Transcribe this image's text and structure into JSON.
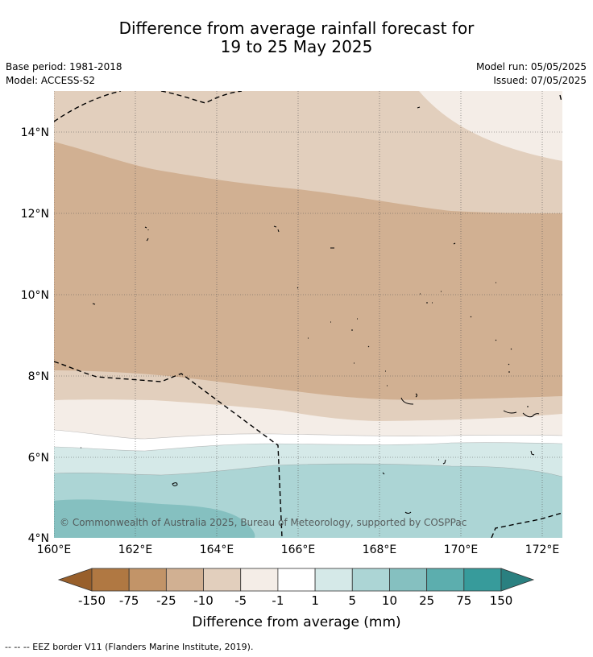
{
  "title_line1": "Difference from average rainfall forecast for",
  "title_line2": "19 to 25 May 2025",
  "base_period": "Base period: 1981-2018",
  "model": "Model: ACCESS-S2",
  "model_run": "Model run: 05/05/2025",
  "issued": "Issued: 07/05/2025",
  "copyright": "© Commonwealth of Australia 2025, Bureau of Meteorology, supported by COSPPac",
  "x_ticks": [
    "160°E",
    "162°E",
    "164°E",
    "166°E",
    "168°E",
    "170°E",
    "172°E"
  ],
  "y_ticks": [
    "14°N",
    "12°N",
    "10°N",
    "8°N",
    "6°N",
    "4°N"
  ],
  "colorbar": {
    "labels": [
      "-150",
      "-75",
      "-25",
      "-10",
      "-5",
      "-1",
      "1",
      "5",
      "10",
      "25",
      "75",
      "150"
    ],
    "colors": [
      "#985f2b",
      "#b07842",
      "#c29468",
      "#d1b092",
      "#e2cfbd",
      "#f4ede7",
      "#ffffff",
      "#d5e9e8",
      "#acd5d5",
      "#85c0c0",
      "#5caeae",
      "#379b9b",
      "#2a8080"
    ],
    "title": "Difference from average (mm)"
  },
  "footnote": "--  --  -- EEZ border V11 (Flanders Marine Institute, 2019)."
}
